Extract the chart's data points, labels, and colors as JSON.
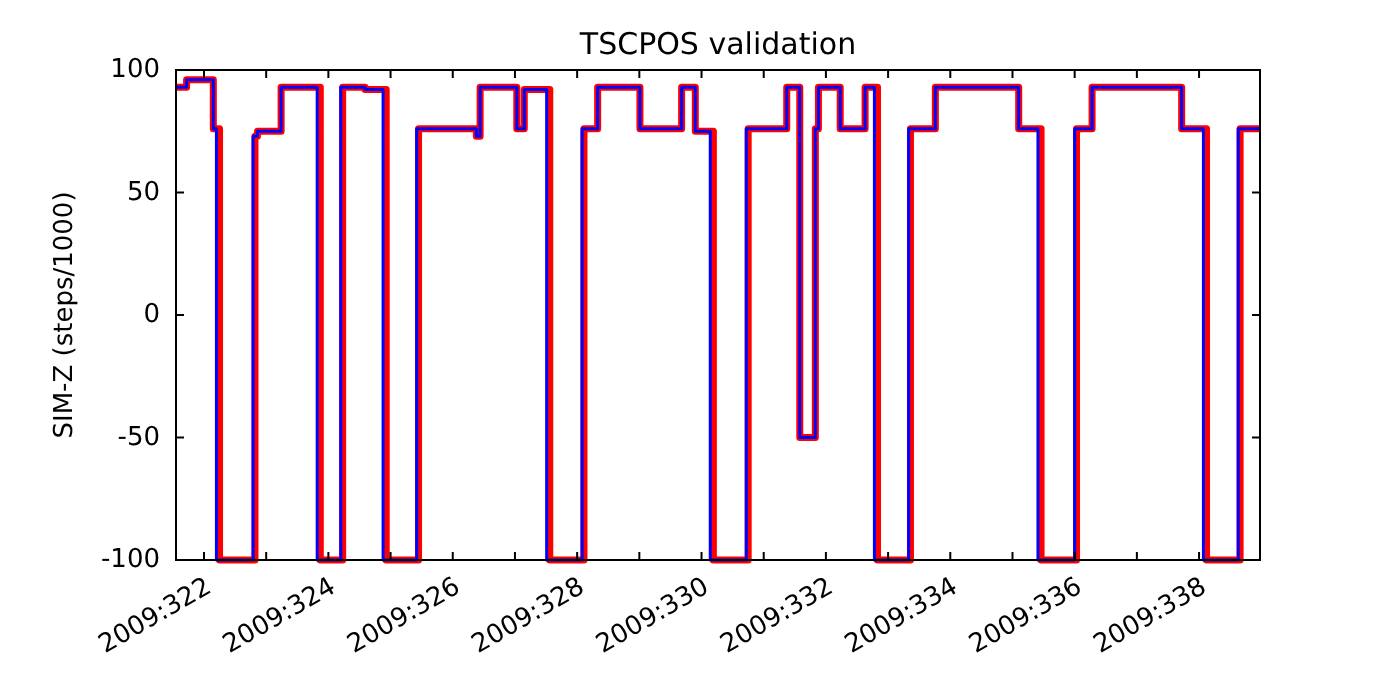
{
  "chart_data": {
    "type": "step",
    "title": "TSCPOS validation",
    "ylabel": "SIM-Z (steps/1000)",
    "xlim": [
      "2009-11-17T13:12",
      "2009-12-04T23:31"
    ],
    "ylim": [
      -100,
      100
    ],
    "xticks": [
      {
        "value": "2009-11-18",
        "label": "2009:322"
      },
      {
        "value": "2009-11-19",
        "label": null
      },
      {
        "value": "2009-11-20",
        "label": "2009:324"
      },
      {
        "value": "2009-11-21",
        "label": null
      },
      {
        "value": "2009-11-22",
        "label": "2009:326"
      },
      {
        "value": "2009-11-23",
        "label": null
      },
      {
        "value": "2009-11-24",
        "label": "2009:328"
      },
      {
        "value": "2009-11-25",
        "label": null
      },
      {
        "value": "2009-11-26",
        "label": "2009:330"
      },
      {
        "value": "2009-11-27",
        "label": null
      },
      {
        "value": "2009-11-28",
        "label": "2009:332"
      },
      {
        "value": "2009-11-29",
        "label": null
      },
      {
        "value": "2009-11-30",
        "label": "2009:334"
      },
      {
        "value": "2009-12-01",
        "label": null
      },
      {
        "value": "2009-12-02",
        "label": "2009:336"
      },
      {
        "value": "2009-12-03",
        "label": null
      },
      {
        "value": "2009-12-04",
        "label": "2009:338"
      }
    ],
    "yticks": [
      -100,
      -50,
      0,
      50,
      100
    ],
    "grid": false,
    "series": [
      {
        "color": "#ff0000",
        "x": [
          "2009-11-17T13:12",
          "2009-11-17T17:17",
          "2009-11-18T03:36",
          "2009-11-18T06:00",
          "2009-11-18T19:41",
          "2009-11-18T20:38",
          "2009-11-19T05:46",
          "2009-11-19T20:53",
          "2009-11-20T05:31",
          "2009-11-20T14:10",
          "2009-11-20T22:19",
          "2009-11-21T10:48",
          "2009-11-22T09:07",
          "2009-11-22T10:34",
          "2009-11-23T00:43",
          "2009-11-23T03:36",
          "2009-11-23T13:26",
          "2009-11-24T02:38",
          "2009-11-24T07:55",
          "2009-11-25T00:14",
          "2009-11-25T16:19",
          "2009-11-25T21:36",
          "2009-11-26T04:34",
          "2009-11-26T18:00",
          "2009-11-27T08:53",
          "2009-11-27T13:55",
          "2009-11-27T19:55",
          "2009-11-27T21:07",
          "2009-11-28T05:31",
          "2009-11-28T15:07",
          "2009-11-28T19:55",
          "2009-11-29T08:38",
          "2009-11-29T18:14",
          "2009-12-01T02:24",
          "2009-12-01T11:02",
          "2009-12-02T00:43",
          "2009-12-02T06:43",
          "2009-12-03T17:17",
          "2009-12-04T02:53",
          "2009-12-04T15:50",
          "2009-12-04T23:31"
        ],
        "values": [
          93,
          96,
          76,
          -100,
          73,
          75,
          93,
          -100,
          93,
          92,
          -100,
          76,
          73,
          93,
          76,
          92,
          -100,
          76,
          93,
          76,
          93,
          75,
          -100,
          76,
          93,
          -50,
          76,
          93,
          76,
          93,
          -100,
          76,
          93,
          76,
          -100,
          76,
          93,
          76,
          -100,
          76,
          76
        ]
      },
      {
        "color": "#0000ff",
        "x": [
          "2009-11-17T13:12",
          "2009-11-17T17:17",
          "2009-11-18T03:36",
          "2009-11-18T04:48",
          "2009-11-18T18:58",
          "2009-11-18T20:38",
          "2009-11-19T05:46",
          "2009-11-19T19:41",
          "2009-11-20T04:48",
          "2009-11-20T14:10",
          "2009-11-20T21:07",
          "2009-11-21T10:05",
          "2009-11-22T09:07",
          "2009-11-22T10:34",
          "2009-11-23T00:43",
          "2009-11-23T03:36",
          "2009-11-23T12:14",
          "2009-11-24T01:55",
          "2009-11-24T07:55",
          "2009-11-25T00:14",
          "2009-11-25T16:19",
          "2009-11-25T21:36",
          "2009-11-26T03:22",
          "2009-11-26T17:17",
          "2009-11-27T08:53",
          "2009-11-27T13:55",
          "2009-11-27T19:55",
          "2009-11-27T21:07",
          "2009-11-28T05:31",
          "2009-11-28T15:07",
          "2009-11-28T18:43",
          "2009-11-29T07:55",
          "2009-11-29T18:14",
          "2009-12-01T02:24",
          "2009-12-01T09:50",
          "2009-12-02T00:00",
          "2009-12-02T06:43",
          "2009-12-03T17:17",
          "2009-12-04T01:41",
          "2009-12-04T15:07",
          "2009-12-04T23:31"
        ],
        "values": [
          93,
          96,
          76,
          -100,
          73,
          75,
          93,
          -100,
          93,
          92,
          -100,
          76,
          73,
          93,
          76,
          92,
          -100,
          76,
          93,
          76,
          93,
          75,
          -100,
          76,
          93,
          -50,
          76,
          93,
          76,
          93,
          -100,
          76,
          93,
          76,
          -100,
          76,
          93,
          76,
          -100,
          76,
          76
        ]
      }
    ]
  }
}
